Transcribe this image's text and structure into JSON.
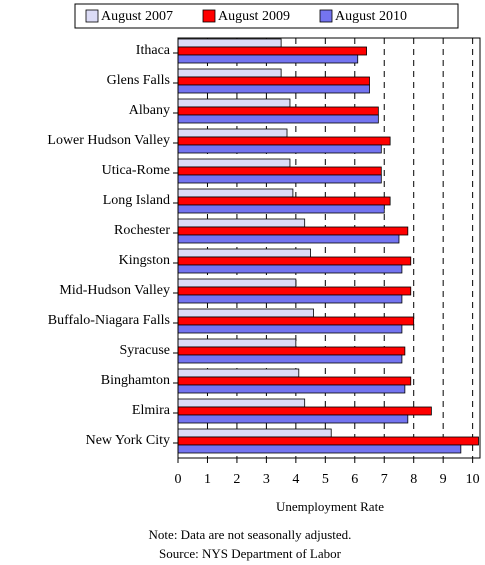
{
  "chart_data": {
    "type": "hbar",
    "categories": [
      "Ithaca",
      "Glens Falls",
      "Albany",
      "Lower Hudson Valley",
      "Utica-Rome",
      "Long Island",
      "Rochester",
      "Kingston",
      "Mid-Hudson Valley",
      "Buffalo-Niagara Falls",
      "Syracuse",
      "Binghamton",
      "Elmira",
      "New York City"
    ],
    "series": [
      {
        "name": "August 2007",
        "color": "#dcdcf6",
        "values": [
          3.5,
          3.5,
          3.8,
          3.7,
          3.8,
          3.9,
          4.3,
          4.5,
          4.0,
          4.6,
          4.0,
          4.1,
          4.3,
          5.2
        ]
      },
      {
        "name": "August 2009",
        "color": "#ff0000",
        "values": [
          6.4,
          6.5,
          6.8,
          7.2,
          6.9,
          7.2,
          7.8,
          7.9,
          7.9,
          8.0,
          7.7,
          7.9,
          8.6,
          10.2
        ]
      },
      {
        "name": "August 2010",
        "color": "#7474f0",
        "values": [
          6.1,
          6.5,
          6.8,
          6.9,
          6.9,
          7.0,
          7.5,
          7.6,
          7.6,
          7.6,
          7.6,
          7.7,
          7.8,
          9.6
        ]
      }
    ],
    "xlabel": "Unemployment Rate",
    "xlim": [
      0,
      10.25
    ],
    "xticks": [
      0,
      1,
      2,
      3,
      4,
      5,
      6,
      7,
      8,
      9,
      10
    ],
    "grid": true,
    "legend": "top",
    "note": "Note: Data are not seasonally adjusted.",
    "source": "Source: NYS Department of Labor"
  }
}
